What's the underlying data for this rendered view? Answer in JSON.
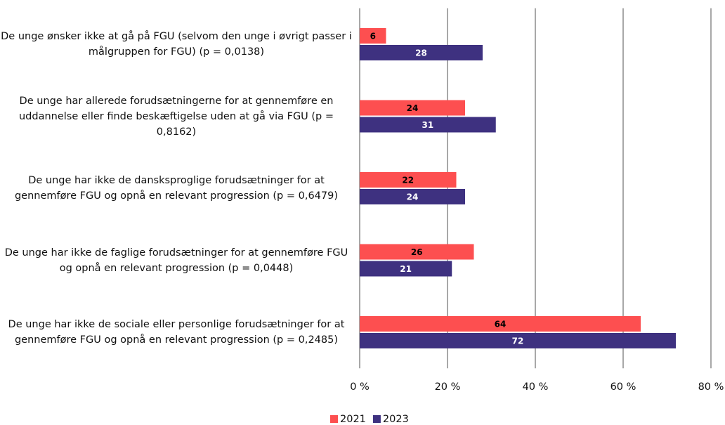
{
  "chart_data": {
    "type": "bar",
    "orientation": "horizontal",
    "categories": [
      "De unge ønsker ikke at gå på FGU (selvom den unge i øvrigt passer i målgruppen for FGU) (p = 0,0138)",
      "De unge har allerede forudsætningerne for at gennemføre en uddannelse eller finde beskæftigelse uden at gå via FGU (p = 0,8162)",
      "De unge har ikke de dansksproglige forudsætninger for at gennemføre FGU og opnå en relevant progression (p = 0,6479)",
      "De unge har ikke de faglige forudsætninger for at gennemføre FGU og opnå en relevant progression (p = 0,0448)",
      "De unge har ikke de sociale eller personlige forudsætninger for at gennemføre FGU og opnå en relevant progression (p = 0,2485)"
    ],
    "series": [
      {
        "name": "2021",
        "color": "#fd4f50",
        "label_color": "#000000",
        "values": [
          6,
          24,
          22,
          26,
          64
        ]
      },
      {
        "name": "2023",
        "color": "#3e3180",
        "label_color": "#ffffff",
        "values": [
          28,
          31,
          24,
          21,
          72
        ]
      }
    ],
    "xlim": [
      0,
      80
    ],
    "xticks": [
      {
        "value": 0,
        "label": "0 %"
      },
      {
        "value": 20,
        "label": "20 %"
      },
      {
        "value": 40,
        "label": "40 %"
      },
      {
        "value": 60,
        "label": "60 %"
      },
      {
        "value": 80,
        "label": "80 %"
      }
    ],
    "grid": true,
    "legend": "bottom"
  }
}
